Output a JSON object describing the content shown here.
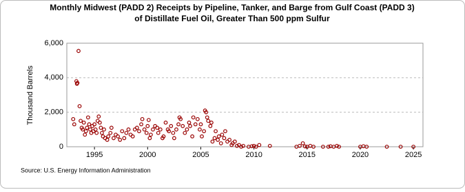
{
  "chart_data": {
    "type": "scatter",
    "title": "Monthly Midwest (PADD 2) Receipts by Pipeline, Tanker, and Barge from Gulf Coast (PADD 3)",
    "subtitle": "of Distillate Fuel Oil, Greater Than 500 ppm Sulfur",
    "y_label": "Thousand Barrels",
    "source": "Source: U.S. Energy Information Administration",
    "color": "#990000",
    "grid": true,
    "xlim": [
      1992.4,
      2025.9
    ],
    "xticks": [
      1995,
      2000,
      2005,
      2010,
      2015,
      2020,
      2025
    ],
    "ylim": [
      0,
      6000
    ],
    "yticks": [
      0,
      {
        "value": 2000,
        "label": "2,000"
      },
      {
        "value": 4000,
        "label": "4,000"
      },
      {
        "value": 6000,
        "label": "6,000"
      }
    ],
    "x": [
      1993.0,
      1993.1,
      1993.3,
      1993.35,
      1993.4,
      1993.5,
      1993.6,
      1993.7,
      1993.8,
      1993.9,
      1994.0,
      1994.1,
      1994.2,
      1994.3,
      1994.4,
      1994.5,
      1994.6,
      1994.7,
      1994.8,
      1994.9,
      1995.0,
      1995.1,
      1995.2,
      1995.3,
      1995.4,
      1995.5,
      1995.6,
      1995.7,
      1995.8,
      1995.9,
      1996.0,
      1996.2,
      1996.3,
      1996.5,
      1996.6,
      1996.8,
      1997.0,
      1997.2,
      1997.4,
      1997.6,
      1997.8,
      1998.0,
      1998.2,
      1998.4,
      1998.6,
      1998.8,
      1999.0,
      1999.2,
      1999.4,
      1999.5,
      1999.7,
      1999.9,
      2000.0,
      2000.1,
      2000.2,
      2000.3,
      2000.5,
      2000.7,
      2000.9,
      2001.0,
      2001.2,
      2001.4,
      2001.5,
      2001.7,
      2001.9,
      2002.0,
      2002.2,
      2002.4,
      2002.5,
      2002.7,
      2002.9,
      2003.0,
      2003.1,
      2003.3,
      2003.5,
      2003.7,
      2003.9,
      2004.0,
      2004.2,
      2004.3,
      2004.5,
      2004.7,
      2004.9,
      2005.0,
      2005.1,
      2005.3,
      2005.4,
      2005.5,
      2005.6,
      2005.7,
      2005.9,
      2006.0,
      2006.1,
      2006.3,
      2006.4,
      2006.6,
      2006.7,
      2006.9,
      2007.0,
      2007.2,
      2007.3,
      2007.5,
      2007.7,
      2007.9,
      2008.0,
      2008.2,
      2008.4,
      2008.6,
      2008.8,
      2009.0,
      2009.5,
      2009.8,
      2010.0,
      2010.2,
      2010.5,
      2011.5,
      2014.0,
      2014.3,
      2014.6,
      2014.8,
      2015.0,
      2015.3,
      2015.6,
      2016.5,
      2017.0,
      2017.2,
      2017.5,
      2017.8,
      2018.0,
      2020.0,
      2020.3,
      2020.6,
      2022.5,
      2023.8,
      2025.0
    ],
    "values": [
      1600,
      1300,
      3800,
      3650,
      3700,
      5550,
      2350,
      1500,
      1100,
      1000,
      1400,
      700,
      900,
      1100,
      1700,
      1300,
      1000,
      800,
      1200,
      900,
      1300,
      1000,
      800,
      1500,
      1750,
      1400,
      1100,
      800,
      600,
      1000,
      500,
      400,
      600,
      800,
      1100,
      500,
      700,
      600,
      400,
      900,
      500,
      800,
      1000,
      700,
      600,
      1000,
      1100,
      900,
      1300,
      1600,
      1000,
      800,
      1200,
      1550,
      500,
      700,
      1000,
      1200,
      1100,
      800,
      1000,
      500,
      600,
      1400,
      1000,
      900,
      1200,
      800,
      500,
      1000,
      1300,
      1700,
      1600,
      1200,
      800,
      1000,
      1400,
      1200,
      600,
      1700,
      1300,
      1600,
      1000,
      1300,
      600,
      900,
      2100,
      2000,
      1700,
      1500,
      1200,
      1400,
      300,
      500,
      900,
      400,
      600,
      200,
      700,
      500,
      900,
      300,
      400,
      100,
      200,
      300,
      50,
      100,
      0,
      50,
      0,
      30,
      50,
      0,
      100,
      50,
      0,
      50,
      200,
      20,
      0,
      50,
      0,
      0,
      0,
      30,
      0,
      50,
      0,
      0,
      30,
      0,
      0,
      0,
      0
    ]
  }
}
